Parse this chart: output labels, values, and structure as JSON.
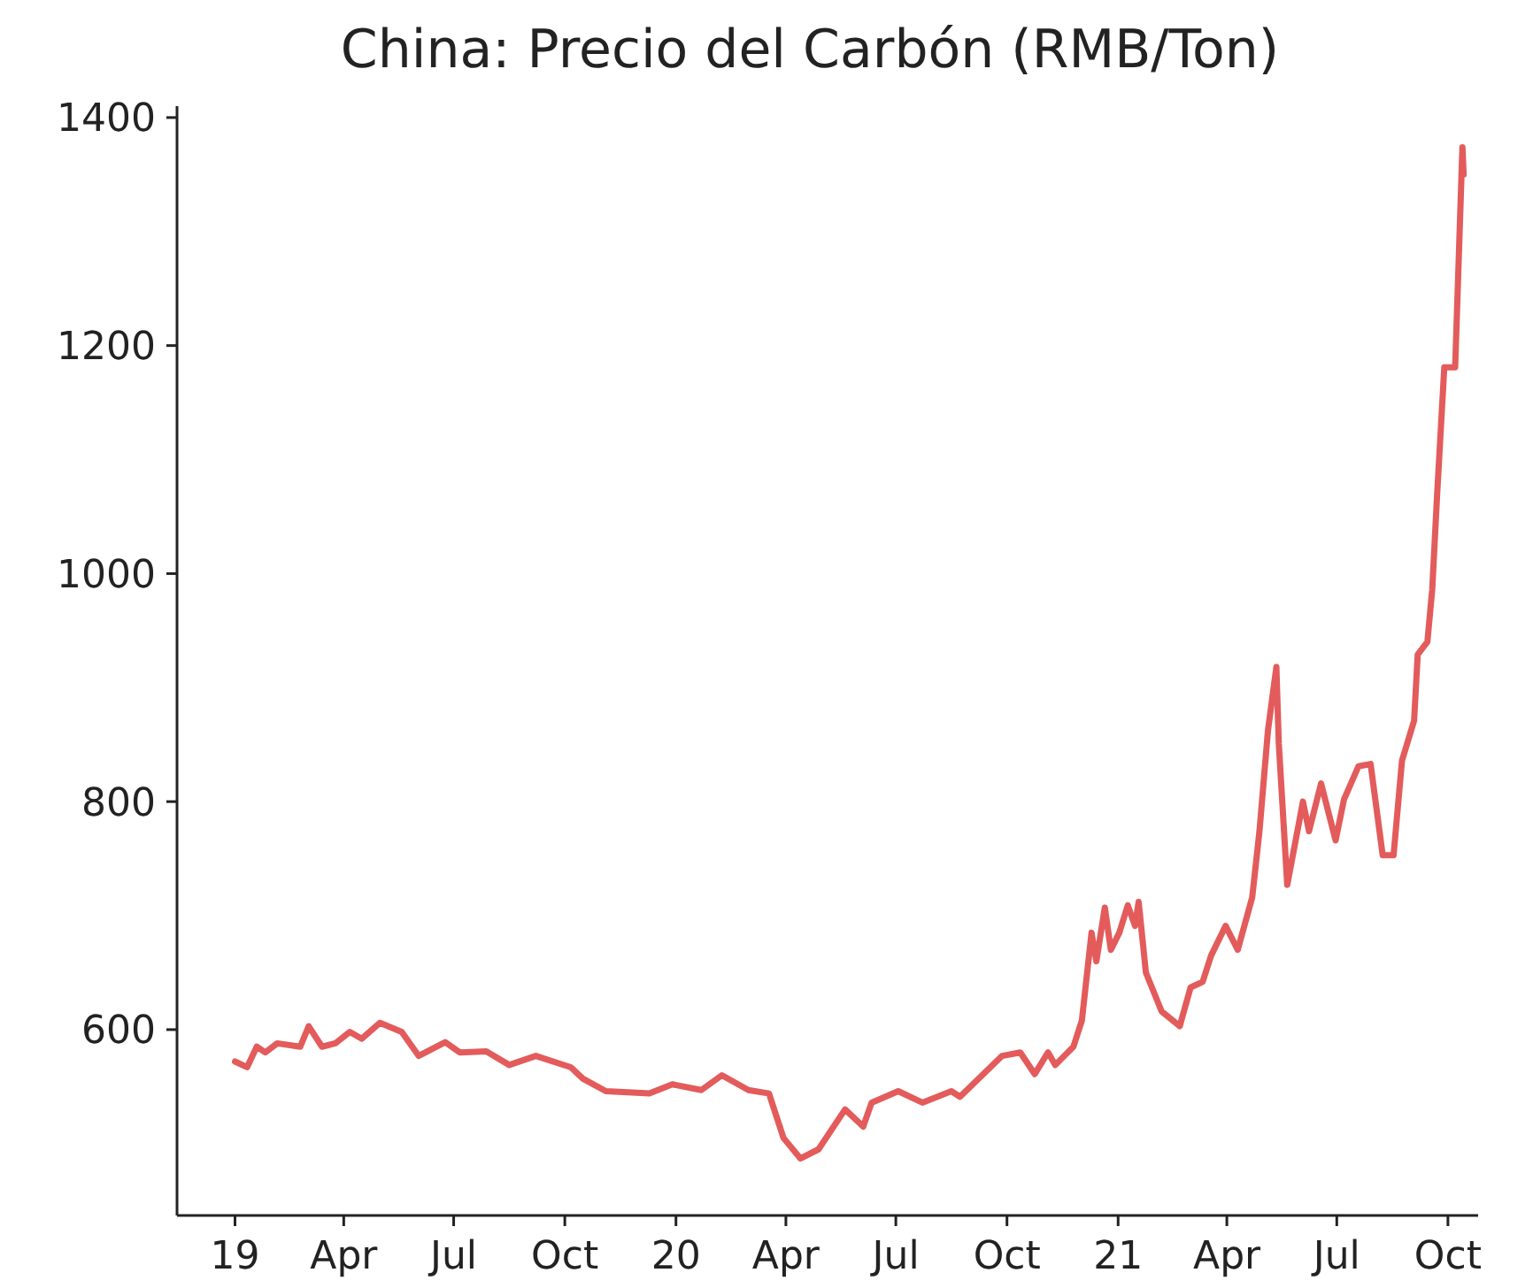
{
  "chart_data": {
    "type": "line",
    "title": "China: Precio del Carbón (RMB/Ton)",
    "x": [
      "2019-01-01",
      "2019-01-11",
      "2019-01-19",
      "2019-01-26",
      "2019-02-05",
      "2019-02-24",
      "2019-03-03",
      "2019-03-14",
      "2019-03-25",
      "2019-04-06",
      "2019-04-16",
      "2019-05-01",
      "2019-05-19",
      "2019-06-02",
      "2019-06-24",
      "2019-07-06",
      "2019-07-28",
      "2019-08-16",
      "2019-09-07",
      "2019-10-06",
      "2019-10-16",
      "2019-11-04",
      "2019-12-10",
      "2019-12-29",
      "2020-01-22",
      "2020-02-08",
      "2020-03-01",
      "2020-03-18",
      "2020-03-30",
      "2020-04-13",
      "2020-04-28",
      "2020-05-20",
      "2020-06-04",
      "2020-06-11",
      "2020-07-03",
      "2020-07-23",
      "2020-08-16",
      "2020-08-23",
      "2020-09-27",
      "2020-10-12",
      "2020-10-24",
      "2020-11-04",
      "2020-11-10",
      "2020-11-25",
      "2020-12-02",
      "2020-12-10",
      "2020-12-14",
      "2020-12-21",
      "2020-12-26",
      "2021-01-02",
      "2021-01-09",
      "2021-01-15",
      "2021-01-18",
      "2021-01-24",
      "2021-02-06",
      "2021-02-21",
      "2021-03-02",
      "2021-03-12",
      "2021-03-19",
      "2021-03-31",
      "2021-04-10",
      "2021-04-22",
      "2021-04-28",
      "2021-05-05",
      "2021-05-12",
      "2021-05-14",
      "2021-05-21",
      "2021-06-03",
      "2021-06-08",
      "2021-06-18",
      "2021-06-30",
      "2021-07-07",
      "2021-07-19",
      "2021-07-29",
      "2021-08-08",
      "2021-08-17",
      "2021-08-24",
      "2021-09-03",
      "2021-09-06",
      "2021-09-14",
      "2021-09-18",
      "2021-09-22",
      "2021-09-28",
      "2021-10-07",
      "2021-10-13",
      "2021-10-14"
    ],
    "series": [
      {
        "color": "#e35b5b",
        "values": [
          572,
          567,
          585,
          580,
          588,
          585,
          603,
          585,
          588,
          598,
          592,
          606,
          598,
          577,
          589,
          580,
          581,
          569,
          577,
          567,
          557,
          546,
          544,
          552,
          547,
          560,
          547,
          544,
          505,
          487,
          495,
          530,
          515,
          536,
          546,
          536,
          546,
          541,
          577,
          580,
          561,
          580,
          569,
          585,
          608,
          685,
          660,
          707,
          670,
          685,
          709,
          691,
          712,
          650,
          616,
          603,
          637,
          642,
          665,
          691,
          670,
          716,
          774,
          862,
          918,
          851,
          727,
          800,
          774,
          816,
          766,
          802,
          831,
          833,
          753,
          753,
          836,
          871,
          929,
          940,
          986,
          1068,
          1181,
          1181,
          1374,
          1350
        ]
      }
    ],
    "xlim": [
      "2018-11-14",
      "2021-10-26"
    ],
    "xticks": [
      {
        "value": "2019-01-01",
        "label": "19"
      },
      {
        "value": "2019-04-01",
        "label": "Apr"
      },
      {
        "value": "2019-07-01",
        "label": "Jul"
      },
      {
        "value": "2019-10-01",
        "label": "Oct"
      },
      {
        "value": "2020-01-01",
        "label": "20"
      },
      {
        "value": "2020-04-01",
        "label": "Apr"
      },
      {
        "value": "2020-07-01",
        "label": "Jul"
      },
      {
        "value": "2020-10-01",
        "label": "Oct"
      },
      {
        "value": "2021-01-01",
        "label": "21"
      },
      {
        "value": "2021-04-01",
        "label": "Apr"
      },
      {
        "value": "2021-07-01",
        "label": "Jul"
      },
      {
        "value": "2021-10-01",
        "label": "Oct"
      }
    ],
    "ylim": [
      437,
      1410
    ],
    "yticks": [
      600,
      800,
      1000,
      1200,
      1400
    ],
    "grid": false,
    "marker": "none",
    "line_style": "solid"
  }
}
